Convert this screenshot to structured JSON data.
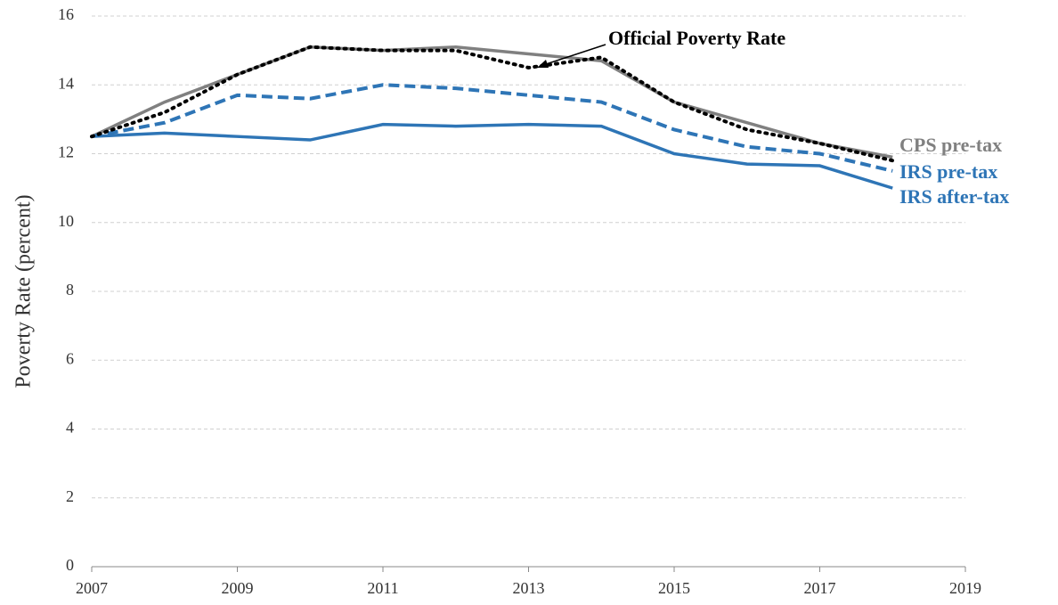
{
  "chart_data": {
    "type": "line",
    "y_label": "Poverty Rate (percent)",
    "x": [
      2007,
      2008,
      2009,
      2010,
      2011,
      2012,
      2013,
      2014,
      2015,
      2016,
      2017,
      2018
    ],
    "xlim": [
      2007,
      2019
    ],
    "xticks": [
      2007,
      2009,
      2011,
      2013,
      2015,
      2017,
      2019
    ],
    "ylim": [
      0,
      16
    ],
    "yticks": [
      0,
      2,
      4,
      6,
      8,
      10,
      12,
      14,
      16
    ],
    "grid": true,
    "series": [
      {
        "name": "Official Poverty Rate",
        "color": "#000000",
        "style": "dotted",
        "values": [
          12.5,
          13.2,
          14.3,
          15.1,
          15.0,
          15.0,
          14.5,
          14.8,
          13.5,
          12.7,
          12.3,
          11.8
        ]
      },
      {
        "name": "CPS pre-tax",
        "color": "#808080",
        "style": "solid",
        "values": [
          12.5,
          13.5,
          14.3,
          15.1,
          15.0,
          15.1,
          14.9,
          14.7,
          13.5,
          12.9,
          12.3,
          11.9
        ]
      },
      {
        "name": "IRS pre-tax",
        "color": "#2e75b6",
        "style": "dashed",
        "values": [
          12.5,
          12.9,
          13.7,
          13.6,
          14.0,
          13.9,
          13.7,
          13.5,
          12.7,
          12.2,
          12.0,
          11.5
        ]
      },
      {
        "name": "IRS after-tax",
        "color": "#2e75b6",
        "style": "solid",
        "values": [
          12.5,
          12.6,
          12.5,
          12.4,
          12.85,
          12.8,
          12.85,
          12.8,
          12.0,
          11.7,
          11.65,
          11.0
        ]
      }
    ]
  }
}
